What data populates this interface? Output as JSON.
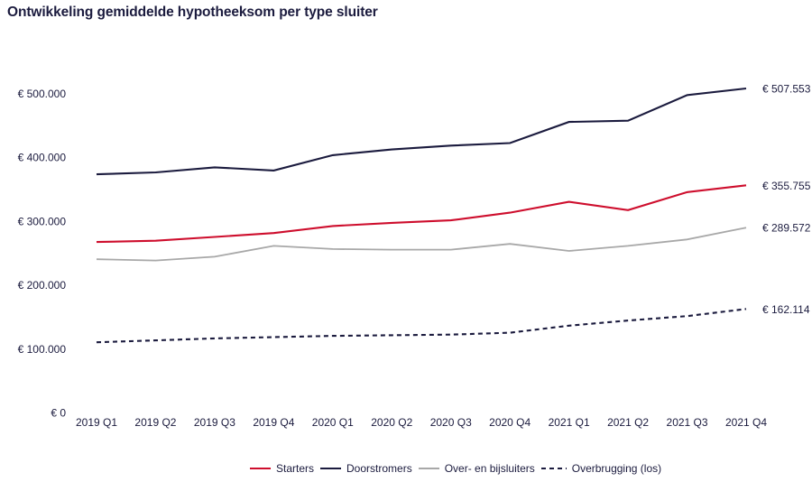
{
  "title": "Ontwikkeling gemiddelde hypotheeksom per type sluiter",
  "colors": {
    "navy": "#1b1b3e",
    "red": "#ce0e2d",
    "gray": "#a8a8a8",
    "background": "#ffffff"
  },
  "chart_data": {
    "type": "line",
    "title": "Ontwikkeling gemiddelde hypotheeksom per type sluiter",
    "xlabel": "",
    "ylabel": "",
    "grid": false,
    "legend_position": "bottom",
    "ylim": [
      0,
      530000
    ],
    "categories": [
      "2019 Q1",
      "2019 Q2",
      "2019 Q3",
      "2019 Q4",
      "2020 Q1",
      "2020 Q2",
      "2020 Q3",
      "2020 Q4",
      "2021 Q1",
      "2021 Q2",
      "2021 Q3",
      "2021 Q4"
    ],
    "y_ticks": [
      {
        "label": "€ 0",
        "value": 0
      },
      {
        "label": "€ 100.000",
        "value": 100000
      },
      {
        "label": "€ 200.000",
        "value": 200000
      },
      {
        "label": "€ 300.000",
        "value": 300000
      },
      {
        "label": "€ 400.000",
        "value": 400000
      },
      {
        "label": "€ 500.000",
        "value": 500000
      }
    ],
    "series": [
      {
        "name": "Starters",
        "color_key": "red",
        "dashed": false,
        "values": [
          267000,
          269000,
          275000,
          281000,
          292000,
          297000,
          301000,
          313000,
          330000,
          317000,
          345000,
          355755
        ],
        "end_label": "€ 355.755"
      },
      {
        "name": "Doorstromers",
        "color_key": "navy",
        "dashed": false,
        "values": [
          373000,
          376000,
          384000,
          379000,
          403000,
          412000,
          418000,
          422000,
          455000,
          457000,
          497000,
          507553
        ],
        "end_label": "€ 507.553"
      },
      {
        "name": "Over- en bijsluiters",
        "color_key": "gray",
        "dashed": false,
        "values": [
          240000,
          238000,
          244000,
          261000,
          256000,
          255000,
          255000,
          264000,
          253000,
          261000,
          271000,
          289572
        ],
        "end_label": "€ 289.572"
      },
      {
        "name": "Overbrugging (los)",
        "color_key": "navy",
        "dashed": true,
        "values": [
          110000,
          113000,
          116000,
          118000,
          120000,
          121000,
          122000,
          125000,
          136000,
          144000,
          151000,
          162114
        ],
        "end_label": "€ 162.114"
      }
    ]
  }
}
